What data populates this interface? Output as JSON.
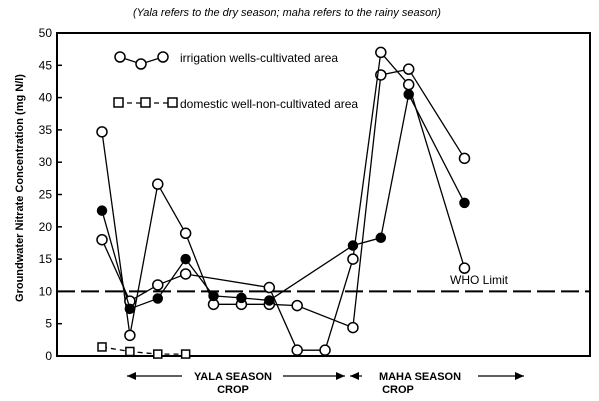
{
  "chart_data": {
    "type": "line",
    "title": "",
    "subtitle": "(Yala refers to the dry season; maha refers to the rainy season)",
    "ylabel": "Groundwater Nitrate Concentration (mg N/l)",
    "xlabel": "",
    "ylim": [
      0,
      50
    ],
    "yticks": [
      0,
      5,
      10,
      15,
      20,
      25,
      30,
      35,
      40,
      45,
      50
    ],
    "grid": false,
    "season_labels": [
      {
        "line1": "YALA SEASON",
        "line2": "CROP"
      },
      {
        "line1": "MAHA SEASON",
        "line2": "CROP"
      }
    ],
    "legend": {
      "placement": "top-left",
      "entries": [
        {
          "label": "irrigation wells-cultivated area",
          "style": "solid-open-circle"
        },
        {
          "label": "domestic well-non-cultivated area",
          "style": "dashed-open-square"
        }
      ]
    },
    "reference_line": {
      "label": "WHO Limit",
      "y": 10,
      "style": "long-dash"
    },
    "x_scale": [
      1,
      18
    ],
    "series": [
      {
        "values_xy": [
          [
            1,
            34.7
          ],
          [
            2,
            3.2
          ],
          [
            3,
            26.6
          ],
          [
            4,
            19.0
          ],
          [
            5,
            8.0
          ],
          [
            6,
            8.0
          ],
          [
            7,
            8.0
          ],
          [
            8,
            7.8
          ],
          [
            10,
            4.4
          ],
          [
            11,
            43.5
          ],
          [
            12,
            44.4
          ],
          [
            14,
            30.6
          ]
        ],
        "marker": "open-circle"
      },
      {
        "values_xy": [
          [
            1,
            18.0
          ],
          [
            2,
            8.5
          ],
          [
            3,
            11.0
          ],
          [
            4,
            12.7
          ],
          [
            7,
            10.6
          ],
          [
            8,
            0.9
          ],
          [
            9,
            0.9
          ],
          [
            10,
            15.0
          ],
          [
            11,
            47.0
          ],
          [
            12,
            42.0
          ],
          [
            14,
            13.6
          ]
        ],
        "marker": "open-circle"
      },
      {
        "values_xy": [
          [
            1,
            22.5
          ],
          [
            2,
            7.3
          ],
          [
            3,
            8.9
          ],
          [
            4,
            15.0
          ],
          [
            5,
            9.3
          ],
          [
            6,
            9.0
          ],
          [
            7,
            8.6
          ],
          [
            10,
            17.1
          ],
          [
            11,
            18.3
          ],
          [
            12,
            40.5
          ],
          [
            14,
            23.7
          ]
        ],
        "marker": "filled-circle"
      },
      {
        "values_xy": [
          [
            1,
            1.4
          ],
          [
            2,
            0.7
          ],
          [
            3,
            0.3
          ],
          [
            4,
            0.3
          ]
        ],
        "marker": "open-square",
        "dashed": true
      }
    ]
  }
}
